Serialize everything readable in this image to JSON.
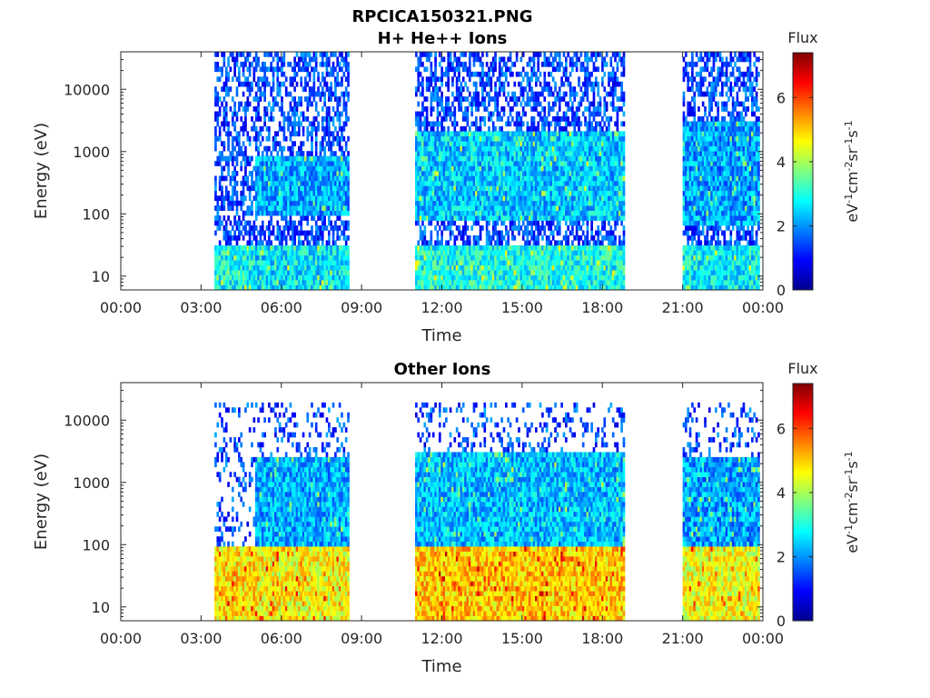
{
  "figure": {
    "title": "RPCICA150321.PNG"
  },
  "chart_data": [
    {
      "type": "heatmap",
      "title": "H+ He++ Ions",
      "xlabel": "Time",
      "ylabel": "Energy (eV)",
      "x_ticks": [
        "00:00",
        "03:00",
        "06:00",
        "09:00",
        "12:00",
        "15:00",
        "18:00",
        "21:00",
        "00:00"
      ],
      "x_range_hours": [
        0,
        24
      ],
      "y_scale": "log",
      "y_ticks": [
        10,
        100,
        1000,
        10000
      ],
      "y_tick_labels": [
        "10",
        "100",
        "1000",
        "10000"
      ],
      "y_range": [
        6,
        40000
      ],
      "colorbar": {
        "title": "Flux",
        "label": "eV-1cm-2sr-1s-1",
        "ticks": [
          0,
          2,
          4,
          6
        ],
        "range": [
          0,
          7.4
        ],
        "colormap": "jet"
      },
      "data_intervals_hours": [
        [
          3.5,
          8.5
        ],
        [
          11.0,
          18.8
        ],
        [
          21.0,
          23.85
        ]
      ],
      "bands": [
        {
          "t": [
            3.5,
            5.0
          ],
          "e": [
            6,
            30
          ],
          "flux": 2.8
        },
        {
          "t": [
            5.0,
            8.5
          ],
          "e": [
            6,
            30
          ],
          "flux": 2.6
        },
        {
          "t": [
            5.0,
            8.5
          ],
          "e": [
            100,
            900
          ],
          "flux": 2.2
        },
        {
          "t": [
            11.0,
            18.8
          ],
          "e": [
            6,
            30
          ],
          "flux": 2.9
        },
        {
          "t": [
            11.0,
            18.8
          ],
          "e": [
            80,
            2000
          ],
          "flux": 2.4
        },
        {
          "t": [
            21.0,
            23.85
          ],
          "e": [
            6,
            30
          ],
          "flux": 2.7
        },
        {
          "t": [
            21.0,
            23.85
          ],
          "e": [
            60,
            3000
          ],
          "flux": 2.1
        }
      ]
    },
    {
      "type": "heatmap",
      "title": "Other Ions",
      "xlabel": "Time",
      "ylabel": "Energy (eV)",
      "x_ticks": [
        "00:00",
        "03:00",
        "06:00",
        "09:00",
        "12:00",
        "15:00",
        "18:00",
        "21:00",
        "00:00"
      ],
      "x_range_hours": [
        0,
        24
      ],
      "y_scale": "log",
      "y_ticks": [
        10,
        100,
        1000,
        10000
      ],
      "y_tick_labels": [
        "10",
        "100",
        "1000",
        "10000"
      ],
      "y_range": [
        6,
        40000
      ],
      "colorbar": {
        "title": "Flux",
        "label": "eV-1cm-2sr-1s-1",
        "ticks": [
          0,
          2,
          4,
          6
        ],
        "range": [
          0,
          7.4
        ],
        "colormap": "jet"
      },
      "data_intervals_hours": [
        [
          3.5,
          8.5
        ],
        [
          11.0,
          18.8
        ],
        [
          21.0,
          23.85
        ]
      ],
      "bands": [
        {
          "t": [
            3.5,
            5.0
          ],
          "e": [
            6,
            90
          ],
          "flux": 4.8
        },
        {
          "t": [
            5.0,
            8.5
          ],
          "e": [
            6,
            90
          ],
          "flux": 4.6
        },
        {
          "t": [
            5.0,
            8.5
          ],
          "e": [
            90,
            2500
          ],
          "flux": 2.2
        },
        {
          "t": [
            11.0,
            18.8
          ],
          "e": [
            6,
            90
          ],
          "flux": 5.0
        },
        {
          "t": [
            11.0,
            18.8
          ],
          "e": [
            90,
            3000
          ],
          "flux": 2.3
        },
        {
          "t": [
            21.0,
            23.85
          ],
          "e": [
            6,
            90
          ],
          "flux": 4.5
        },
        {
          "t": [
            21.0,
            23.85
          ],
          "e": [
            90,
            2500
          ],
          "flux": 2.1
        }
      ]
    }
  ]
}
